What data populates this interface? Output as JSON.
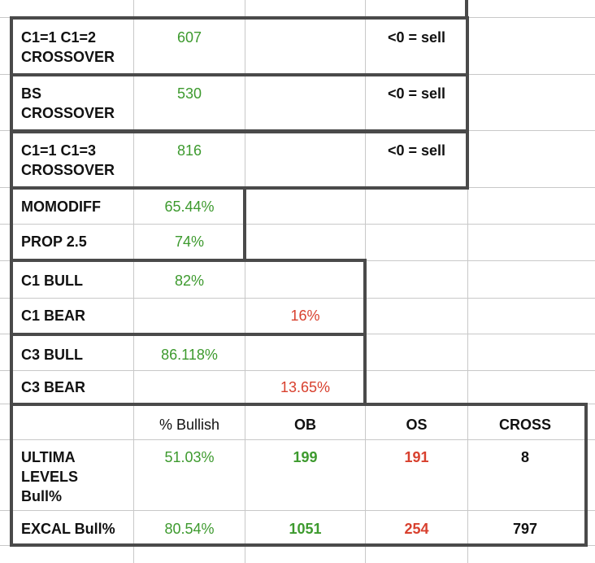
{
  "colors": {
    "green": "#3d9a2e",
    "red": "#d8402e",
    "black": "#111111",
    "gridline": "#c8c8c8",
    "border": "#4a4a4a"
  },
  "rows": {
    "c1_c2": {
      "label_line1": "C1=1 C1=2",
      "label_line2": "CROSSOVER",
      "value": "607",
      "note": "<0 = sell"
    },
    "bs": {
      "label_line1": "BS",
      "label_line2": "CROSSOVER",
      "value": "530",
      "note": "<0 = sell"
    },
    "c1_c3": {
      "label_line1": "C1=1 C1=3",
      "label_line2": "CROSSOVER",
      "value": "816",
      "note": "<0 = sell"
    },
    "momodiff": {
      "label": "MOMODIFF",
      "value": "65.44%"
    },
    "prop": {
      "label": "PROP 2.5",
      "value": "74%"
    },
    "c1_bull": {
      "label": "C1 BULL",
      "value": "82%"
    },
    "c1_bear": {
      "label": "C1 BEAR",
      "value": "16%"
    },
    "c3_bull": {
      "label": "C3 BULL",
      "value": "86.118%"
    },
    "c3_bear": {
      "label": "C3 BEAR",
      "value": "13.65%"
    }
  },
  "summary": {
    "headers": {
      "bullish": "% Bullish",
      "ob": "OB",
      "os": "OS",
      "cross": "CROSS"
    },
    "ultima": {
      "label_line1": "ULTIMA",
      "label_line2": "LEVELS",
      "label_line3": "Bull%",
      "bullish": "51.03%",
      "ob": "199",
      "os": "191",
      "cross": "8"
    },
    "excal": {
      "label": "EXCAL Bull%",
      "bullish": "80.54%",
      "ob": "1051",
      "os": "254",
      "cross": "797"
    }
  }
}
